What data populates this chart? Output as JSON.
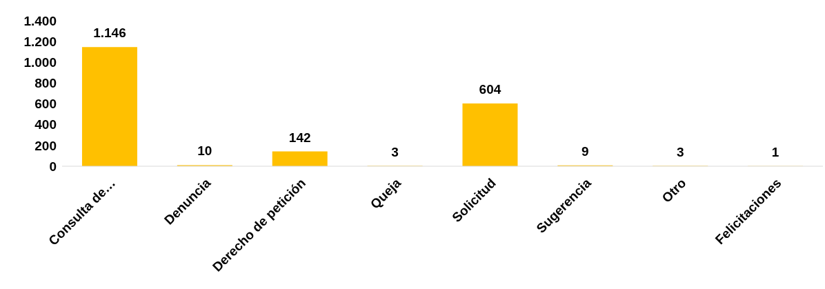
{
  "chart_data": {
    "type": "bar",
    "categories": [
      "Consulta de…",
      "Denuncia",
      "Derecho de petición",
      "Queja",
      "Solicitud",
      "Sugerencia",
      "Otro",
      "Felicitaciones"
    ],
    "values": [
      1146,
      10,
      142,
      3,
      604,
      9,
      3,
      1
    ],
    "value_labels": [
      "1.146",
      "10",
      "142",
      "3",
      "604",
      "9",
      "3",
      "1"
    ],
    "color": "#ffc000",
    "ylim": [
      0,
      1400
    ],
    "yticks": [
      {
        "value": 0,
        "label": "0"
      },
      {
        "value": 200,
        "label": "200"
      },
      {
        "value": 400,
        "label": "400"
      },
      {
        "value": 600,
        "label": "600"
      },
      {
        "value": 800,
        "label": "800"
      },
      {
        "value": 1000,
        "label": "1.000"
      },
      {
        "value": 1200,
        "label": "1.200"
      },
      {
        "value": 1400,
        "label": "1.400"
      }
    ],
    "grid": false
  }
}
